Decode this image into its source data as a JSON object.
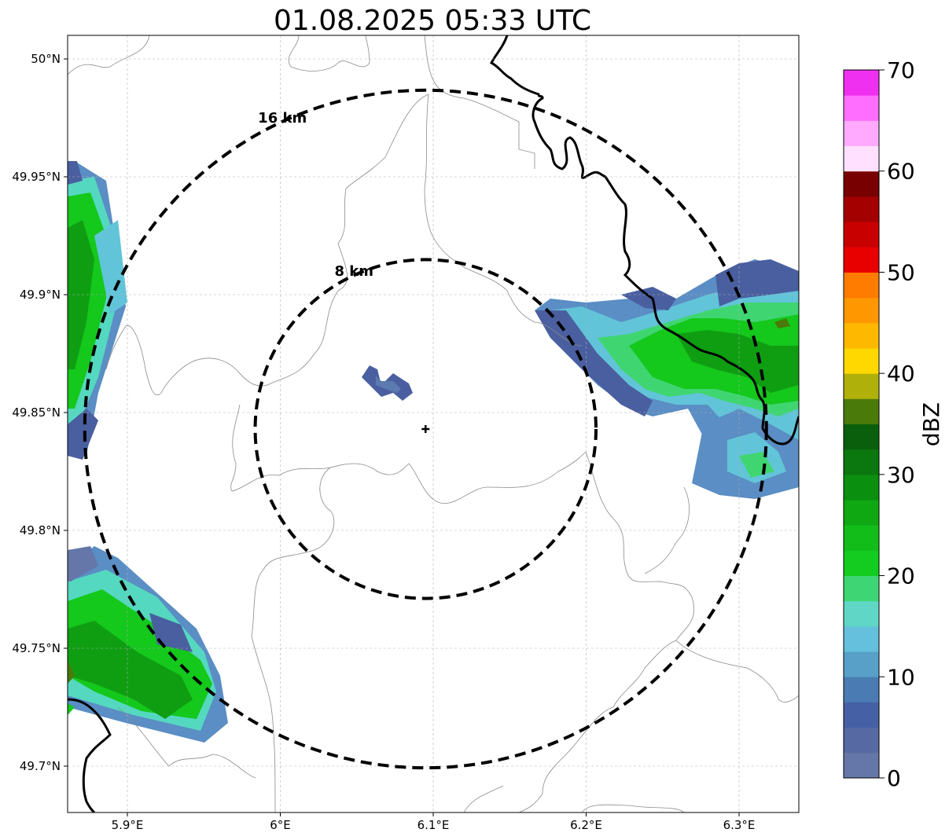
{
  "title": "01.08.2025 05:33 UTC",
  "map": {
    "lon_range": [
      5.86,
      6.34
    ],
    "lat_range": [
      49.68,
      50.01
    ],
    "x_ticks": [
      {
        "value": 5.9,
        "label": "5.9°E"
      },
      {
        "value": 6.0,
        "label": "6°E"
      },
      {
        "value": 6.1,
        "label": "6.1°E"
      },
      {
        "value": 6.2,
        "label": "6.2°E"
      },
      {
        "value": 6.3,
        "label": "6.3°E"
      }
    ],
    "y_ticks": [
      {
        "value": 50.0,
        "label": "50°N"
      },
      {
        "value": 49.95,
        "label": "49.95°N"
      },
      {
        "value": 49.9,
        "label": "49.9°N"
      },
      {
        "value": 49.85,
        "label": "49.85°N"
      },
      {
        "value": 49.8,
        "label": "49.8°N"
      },
      {
        "value": 49.75,
        "label": "49.75°N"
      },
      {
        "value": 49.7,
        "label": "49.7°N"
      }
    ],
    "grid": true,
    "radar_site": {
      "lon": 6.095,
      "lat": 49.843
    },
    "range_rings": [
      {
        "km": 8,
        "label": "8 km"
      },
      {
        "km": 16,
        "label": "16 km"
      }
    ]
  },
  "colorbar": {
    "label": "dBZ",
    "min": 0,
    "max": 70,
    "ticks": [
      "0",
      "10",
      "20",
      "30",
      "40",
      "50",
      "60",
      "70"
    ],
    "colors": [
      "#6577a8",
      "#5669a2",
      "#4660a5",
      "#4a7bb3",
      "#58a0c8",
      "#64c0dc",
      "#5fd6c6",
      "#3ed675",
      "#14cc20",
      "#12bd1a",
      "#0fa812",
      "#0a8f0f",
      "#0a780e",
      "#0a5f0c",
      "#4a7a0a",
      "#b0b00a",
      "#ffd800",
      "#ffb800",
      "#ff9800",
      "#ff7c00",
      "#e80000",
      "#c80000",
      "#a40000",
      "#780000",
      "#ffe0ff",
      "#ffaaff",
      "#ff6eff",
      "#f030f0"
    ]
  },
  "echo_colors": {
    "dark_blue": "#4a5fa0",
    "blue": "#5a8ec4",
    "cyan": "#62c4d8",
    "teal": "#55d8c0",
    "light_green": "#3fd671",
    "green": "#14c81c",
    "dark_green": "#0f9e12",
    "olive": "#4a7a0a"
  }
}
